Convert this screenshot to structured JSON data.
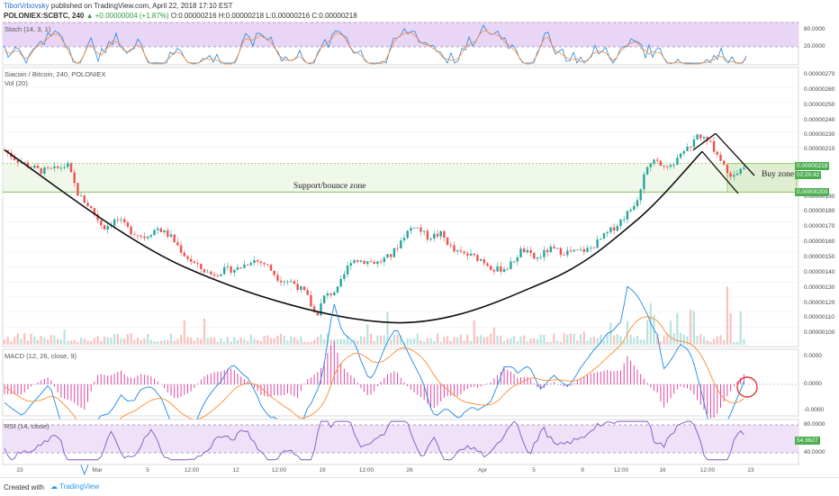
{
  "header": {
    "author": "TiborVrbovsky",
    "published": "published on TradingView.com, April 22, 2018 17:10 EST",
    "symbol_line": "POLONIEX:SCBTC, 240",
    "change": "▲ +0.00000004 (+1.87%)",
    "ohlc": "O:0.00000216 H:0.00000218 L:0.00000216 C:0.00000218"
  },
  "panes": {
    "stoch_label": "Stoch (14, 3, 1)",
    "price_title": "Siacoin / Bitcoin, 240, POLONIEX",
    "vol_label": "Vol (20)",
    "macd_label": "MACD (12, 26, close, 9)",
    "rsi_label": "RSI (14, close)"
  },
  "annotations": {
    "support_zone": "Support/bounce zone",
    "buy_zone": "Buy zone"
  },
  "price_tags": {
    "last": "0.00000218",
    "countdown": "02:20:42",
    "support": "0.00000200"
  },
  "footer": {
    "created_with": "Created with",
    "brand": "TradingView"
  },
  "chart_data": [
    {
      "type": "candlestick",
      "title": "Siacoin / Bitcoin, 240, POLONIEX",
      "y_ticks": [
        "0.00000270",
        "0.00000260",
        "0.00000250",
        "0.00000240",
        "0.00000230",
        "0.00000210",
        "0.00000190",
        "0.00000180",
        "0.00000170",
        "0.00000160",
        "0.00000150",
        "0.00000140",
        "0.00000130",
        "0.00000120",
        "0.00000110",
        "0.00000100"
      ],
      "x_ticks": [
        "23",
        "Mar",
        "5",
        "12:00",
        "12",
        "12:00",
        "19",
        "12:00",
        "26",
        "Apr",
        "5",
        "9",
        "12:00",
        "16",
        "12:00",
        "23"
      ],
      "ylim": [
        1e-06,
        2.8e-06
      ],
      "close_path": [
        [
          0,
          2.28e-06
        ],
        [
          12,
          2.22e-06
        ],
        [
          25,
          2.18e-06
        ],
        [
          40,
          2.14e-06
        ],
        [
          55,
          2.15e-06
        ],
        [
          70,
          2.18e-06
        ],
        [
          82,
          1.98e-06
        ],
        [
          95,
          1.9e-06
        ],
        [
          110,
          1.76e-06
        ],
        [
          125,
          1.82e-06
        ],
        [
          140,
          1.74e-06
        ],
        [
          155,
          1.7e-06
        ],
        [
          170,
          1.76e-06
        ],
        [
          185,
          1.7e-06
        ],
        [
          200,
          1.58e-06
        ],
        [
          215,
          1.5e-06
        ],
        [
          230,
          1.45e-06
        ],
        [
          245,
          1.48e-06
        ],
        [
          260,
          1.49e-06
        ],
        [
          275,
          1.55e-06
        ],
        [
          290,
          1.52e-06
        ],
        [
          305,
          1.42e-06
        ],
        [
          320,
          1.4e-06
        ],
        [
          335,
          1.32e-06
        ],
        [
          346,
          1.17e-06
        ],
        [
          355,
          1.3e-06
        ],
        [
          370,
          1.35e-06
        ],
        [
          385,
          1.55e-06
        ],
        [
          400,
          1.54e-06
        ],
        [
          415,
          1.53e-06
        ],
        [
          430,
          1.58e-06
        ],
        [
          445,
          1.72e-06
        ],
        [
          455,
          1.78e-06
        ],
        [
          470,
          1.7e-06
        ],
        [
          485,
          1.72e-06
        ],
        [
          500,
          1.6e-06
        ],
        [
          515,
          1.58e-06
        ],
        [
          530,
          1.55e-06
        ],
        [
          545,
          1.48e-06
        ],
        [
          560,
          1.5e-06
        ],
        [
          575,
          1.62e-06
        ],
        [
          590,
          1.55e-06
        ],
        [
          605,
          1.62e-06
        ],
        [
          620,
          1.6e-06
        ],
        [
          635,
          1.6e-06
        ],
        [
          650,
          1.62e-06
        ],
        [
          665,
          1.7e-06
        ],
        [
          680,
          1.78e-06
        ],
        [
          695,
          1.88e-06
        ],
        [
          705,
          1.98e-06
        ],
        [
          712,
          2.18e-06
        ],
        [
          725,
          2.2e-06
        ],
        [
          740,
          2.18e-06
        ],
        [
          755,
          2.26e-06
        ],
        [
          770,
          2.38e-06
        ],
        [
          785,
          2.32e-06
        ],
        [
          795,
          2.22e-06
        ],
        [
          805,
          2.12e-06
        ],
        [
          815,
          2.14e-06
        ],
        [
          825,
          2.18e-06
        ]
      ],
      "lines": [
        {
          "name": "cup",
          "points": [
            [
              0,
              2.28e-06
            ],
            [
              200,
              1.5e-06
            ],
            [
              430,
              1.13e-06
            ],
            [
              600,
              1.4e-06
            ],
            [
              700,
              1.8e-06
            ],
            [
              775,
              2.27e-06
            ]
          ]
        },
        {
          "name": "pattern_up",
          "points": [
            [
              765,
              2.28e-06
            ],
            [
              790,
              2.39e-06
            ]
          ]
        },
        {
          "name": "pattern_down",
          "points": [
            [
              790,
              2.39e-06
            ],
            [
              833,
              2.11e-06
            ]
          ]
        },
        {
          "name": "pattern_low",
          "points": [
            [
              775,
              2.27e-06
            ],
            [
              815,
              1.99e-06
            ]
          ]
        }
      ],
      "support_zone": [
        2e-06,
        2.19e-06
      ],
      "buy_zone_x": [
        803,
        880
      ]
    },
    {
      "type": "line",
      "title": "Stoch (14, 3, 1)",
      "y_ticks": [
        "80.0000",
        "20.0000"
      ],
      "ylim": [
        0,
        100
      ]
    },
    {
      "type": "line",
      "title": "MACD (12, 26, close, 9)",
      "y_ticks": [
        "0.0000",
        "0.0000",
        "-0.0000"
      ]
    },
    {
      "type": "line",
      "title": "RSI (14, close)",
      "y_ticks": [
        "80.0000",
        "40.0000"
      ],
      "last_value": "54.3627",
      "ylim": [
        30,
        85
      ]
    }
  ],
  "colors": {
    "up": "#26a69a",
    "down": "#ef5350",
    "stoch_fill": "#e9d5f5",
    "rsi_fill": "#efe1f7",
    "zone": "#e5f0dc",
    "macd_line": "#1e88e5",
    "signal_line": "#ff8a30",
    "hist": "#e046a6",
    "accent": "#2a6fd6"
  }
}
